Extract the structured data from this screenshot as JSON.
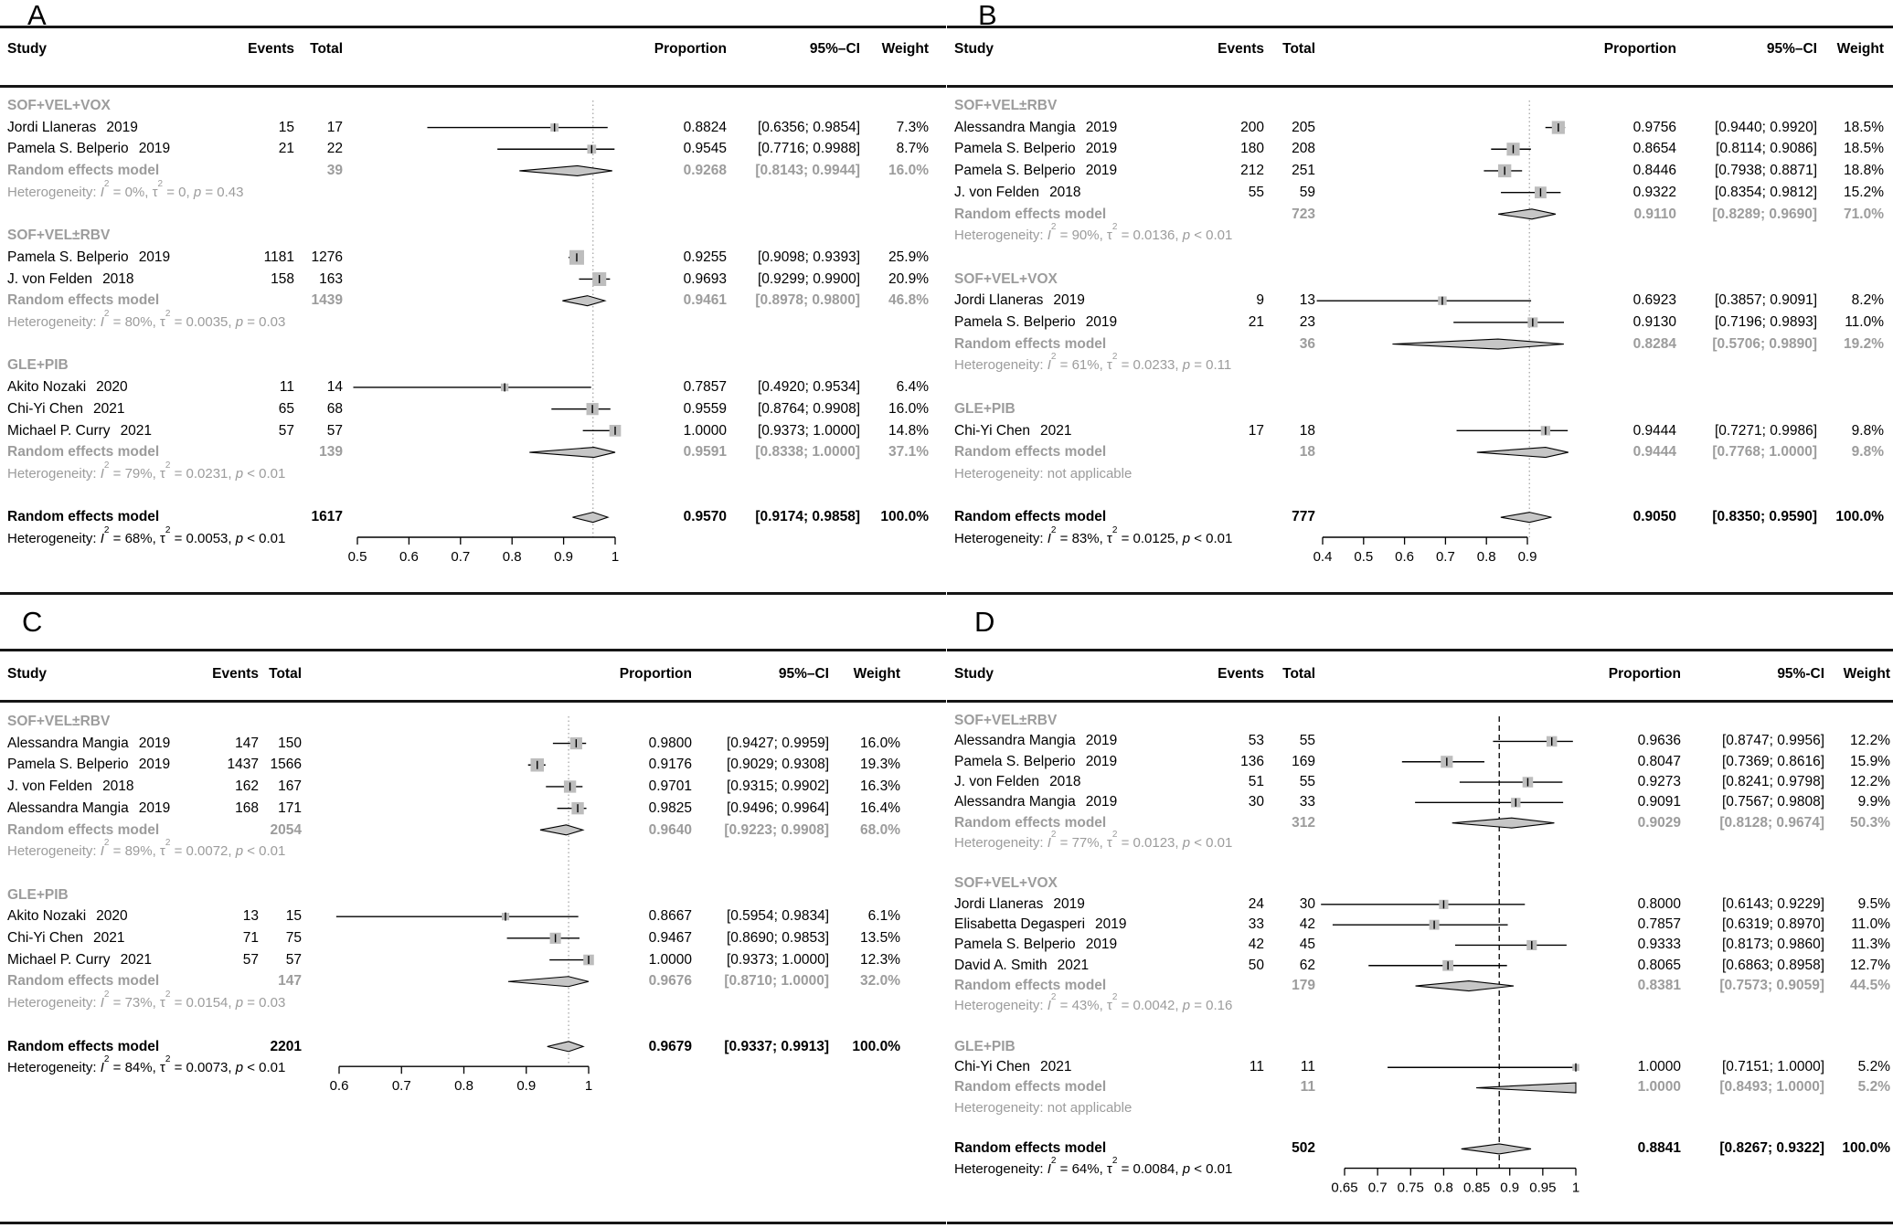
{
  "figure_colors": {
    "text": "#000000",
    "muted": "#9c9c9c",
    "square": "#bdbdbd",
    "diamond": "#c6c6c6",
    "ref_dotted": "#a8a8a8",
    "ref_dashed": "#000000",
    "rule": "#161616"
  },
  "chart_data": {
    "type": "forest",
    "panels": [
      {
        "label": "A",
        "columns": {
          "study": "Study",
          "events": "Events",
          "total": "Total",
          "proportion": "Proportion",
          "ci": "95%–CI",
          "weight": "Weight"
        },
        "axis": {
          "ticks": [
            {
              "v": 0.5,
              "label": "0.5"
            },
            {
              "v": 0.6,
              "label": "0.6"
            },
            {
              "v": 0.7,
              "label": "0.7"
            },
            {
              "v": 0.8,
              "label": "0.8"
            },
            {
              "v": 0.9,
              "label": "0.9"
            },
            {
              "v": 1.0,
              "label": "1"
            }
          ],
          "ref": 0.957,
          "ref_style": "dotted"
        },
        "rows": [
          {
            "type": "group",
            "label": "SOF+VEL+VOX"
          },
          {
            "type": "study",
            "study": "Jordi Llaneras",
            "year": "2019",
            "events": "15",
            "total": "17",
            "proportion": "0.8824",
            "ci": "[0.6356; 0.9854]",
            "weight": "7.3%"
          },
          {
            "type": "study",
            "study": "Pamela S. Belperio",
            "year": "2019",
            "events": "21",
            "total": "22",
            "proportion": "0.9545",
            "ci": "[0.7716; 0.9988]",
            "weight": "8.7%"
          },
          {
            "type": "pooled",
            "label": "Random effects model",
            "total": "39",
            "proportion": "0.9268",
            "ci": "[0.8143; 0.9944]",
            "weight": "16.0%"
          },
          {
            "type": "het",
            "i2": "0%",
            "tau2": "0",
            "p": "= 0.43"
          },
          {
            "type": "gap"
          },
          {
            "type": "group",
            "label": "SOF+VEL±RBV"
          },
          {
            "type": "study",
            "study": "Pamela S. Belperio",
            "year": "2019",
            "events": "1181",
            "total": "1276",
            "proportion": "0.9255",
            "ci": "[0.9098; 0.9393]",
            "weight": "25.9%"
          },
          {
            "type": "study",
            "study": "J. von Felden",
            "year": "2018",
            "events": "158",
            "total": "163",
            "proportion": "0.9693",
            "ci": "[0.9299; 0.9900]",
            "weight": "20.9%"
          },
          {
            "type": "pooled",
            "label": "Random effects model",
            "total": "1439",
            "proportion": "0.9461",
            "ci": "[0.8978; 0.9800]",
            "weight": "46.8%"
          },
          {
            "type": "het",
            "i2": "80%",
            "tau2": "0.0035",
            "p": "= 0.03"
          },
          {
            "type": "gap"
          },
          {
            "type": "group",
            "label": "GLE+PIB"
          },
          {
            "type": "study",
            "study": "Akito Nozaki",
            "year": "2020",
            "events": "11",
            "total": "14",
            "proportion": "0.7857",
            "ci": "[0.4920; 0.9534]",
            "weight": "6.4%"
          },
          {
            "type": "study",
            "study": "Chi-Yi Chen",
            "year": "2021",
            "events": "65",
            "total": "68",
            "proportion": "0.9559",
            "ci": "[0.8764; 0.9908]",
            "weight": "16.0%"
          },
          {
            "type": "study",
            "study": "Michael P. Curry",
            "year": "2021",
            "events": "57",
            "total": "57",
            "proportion": "1.0000",
            "ci": "[0.9373; 1.0000]",
            "weight": "14.8%"
          },
          {
            "type": "pooled",
            "label": "Random effects model",
            "total": "139",
            "proportion": "0.9591",
            "ci": "[0.8338; 1.0000]",
            "weight": "37.1%"
          },
          {
            "type": "het",
            "i2": "79%",
            "tau2": "0.0231",
            "p": "< 0.01"
          },
          {
            "type": "gap"
          },
          {
            "type": "overall",
            "label": "Random effects model",
            "total": "1617",
            "proportion": "0.9570",
            "ci": "[0.9174; 0.9858]",
            "weight": "100.0%"
          },
          {
            "type": "het_overall",
            "i2": "68%",
            "tau2": "0.0053",
            "p": "< 0.01"
          }
        ]
      },
      {
        "label": "B",
        "columns": {
          "study": "Study",
          "events": "Events",
          "total": "Total",
          "proportion": "Proportion",
          "ci": "95%–CI",
          "weight": "Weight"
        },
        "axis": {
          "ticks": [
            {
              "v": 0.4,
              "label": "0.4"
            },
            {
              "v": 0.5,
              "label": "0.5"
            },
            {
              "v": 0.6,
              "label": "0.6"
            },
            {
              "v": 0.7,
              "label": "0.7"
            },
            {
              "v": 0.8,
              "label": "0.8"
            },
            {
              "v": 0.9,
              "label": "0.9"
            }
          ],
          "ref": 0.905,
          "ref_style": "dotted"
        },
        "rows": [
          {
            "type": "group",
            "label": "SOF+VEL±RBV"
          },
          {
            "type": "study",
            "study": "Alessandra Mangia",
            "year": "2019",
            "events": "200",
            "total": "205",
            "proportion": "0.9756",
            "ci": "[0.9440; 0.9920]",
            "weight": "18.5%"
          },
          {
            "type": "study",
            "study": "Pamela S. Belperio",
            "year": "2019",
            "events": "180",
            "total": "208",
            "proportion": "0.8654",
            "ci": "[0.8114; 0.9086]",
            "weight": "18.5%"
          },
          {
            "type": "study",
            "study": "Pamela S. Belperio",
            "year": "2019",
            "events": "212",
            "total": "251",
            "proportion": "0.8446",
            "ci": "[0.7938; 0.8871]",
            "weight": "18.8%"
          },
          {
            "type": "study",
            "study": "J. von Felden",
            "year": "2018",
            "events": "55",
            "total": "59",
            "proportion": "0.9322",
            "ci": "[0.8354; 0.9812]",
            "weight": "15.2%"
          },
          {
            "type": "pooled",
            "label": "Random effects model",
            "total": "723",
            "proportion": "0.9110",
            "ci": "[0.8289; 0.9690]",
            "weight": "71.0%"
          },
          {
            "type": "het",
            "i2": "90%",
            "tau2": "0.0136",
            "p": "< 0.01"
          },
          {
            "type": "gap"
          },
          {
            "type": "group",
            "label": "SOF+VEL+VOX"
          },
          {
            "type": "study",
            "study": "Jordi Llaneras",
            "year": "2019",
            "events": "9",
            "total": "13",
            "proportion": "0.6923",
            "ci": "[0.3857; 0.9091]",
            "weight": "8.2%"
          },
          {
            "type": "study",
            "study": "Pamela S. Belperio",
            "year": "2019",
            "events": "21",
            "total": "23",
            "proportion": "0.9130",
            "ci": "[0.7196; 0.9893]",
            "weight": "11.0%"
          },
          {
            "type": "pooled",
            "label": "Random effects model",
            "total": "36",
            "proportion": "0.8284",
            "ci": "[0.5706; 0.9890]",
            "weight": "19.2%"
          },
          {
            "type": "het",
            "i2": "61%",
            "tau2": "0.0233",
            "p": "= 0.11"
          },
          {
            "type": "gap"
          },
          {
            "type": "group",
            "label": "GLE+PIB"
          },
          {
            "type": "study",
            "study": "Chi-Yi Chen",
            "year": "2021",
            "events": "17",
            "total": "18",
            "proportion": "0.9444",
            "ci": "[0.7271; 0.9986]",
            "weight": "9.8%"
          },
          {
            "type": "pooled",
            "label": "Random effects model",
            "total": "18",
            "proportion": "0.9444",
            "ci": "[0.7768; 1.0000]",
            "weight": "9.8%"
          },
          {
            "type": "het",
            "na": "not applicable"
          },
          {
            "type": "gap"
          },
          {
            "type": "overall",
            "label": "Random effects model",
            "total": "777",
            "proportion": "0.9050",
            "ci": "[0.8350; 0.9590]",
            "weight": "100.0%"
          },
          {
            "type": "het_overall",
            "i2": "83%",
            "tau2": "0.0125",
            "p": "< 0.01"
          }
        ]
      },
      {
        "label": "C",
        "columns": {
          "study": "Study",
          "events": "Events",
          "total": "Total",
          "proportion": "Proportion",
          "ci": "95%–CI",
          "weight": "Weight"
        },
        "axis": {
          "ticks": [
            {
              "v": 0.6,
              "label": "0.6"
            },
            {
              "v": 0.7,
              "label": "0.7"
            },
            {
              "v": 0.8,
              "label": "0.8"
            },
            {
              "v": 0.9,
              "label": "0.9"
            },
            {
              "v": 1.0,
              "label": "1"
            }
          ],
          "ref": 0.9679,
          "ref_style": "dotted"
        },
        "rows": [
          {
            "type": "group",
            "label": "SOF+VEL±RBV"
          },
          {
            "type": "study",
            "study": "Alessandra Mangia",
            "year": "2019",
            "events": "147",
            "total": "150",
            "proportion": "0.9800",
            "ci": "[0.9427; 0.9959]",
            "weight": "16.0%"
          },
          {
            "type": "study",
            "study": "Pamela S. Belperio",
            "year": "2019",
            "events": "1437",
            "total": "1566",
            "proportion": "0.9176",
            "ci": "[0.9029; 0.9308]",
            "weight": "19.3%"
          },
          {
            "type": "study",
            "study": "J. von Felden",
            "year": "2018",
            "events": "162",
            "total": "167",
            "proportion": "0.9701",
            "ci": "[0.9315; 0.9902]",
            "weight": "16.3%"
          },
          {
            "type": "study",
            "study": "Alessandra Mangia",
            "year": "2019",
            "events": "168",
            "total": "171",
            "proportion": "0.9825",
            "ci": "[0.9496; 0.9964]",
            "weight": "16.4%"
          },
          {
            "type": "pooled",
            "label": "Random effects model",
            "total": "2054",
            "proportion": "0.9640",
            "ci": "[0.9223; 0.9908]",
            "weight": "68.0%"
          },
          {
            "type": "het",
            "i2": "89%",
            "tau2": "0.0072",
            "p": "< 0.01"
          },
          {
            "type": "gap"
          },
          {
            "type": "group",
            "label": "GLE+PIB"
          },
          {
            "type": "study",
            "study": "Akito Nozaki",
            "year": "2020",
            "events": "13",
            "total": "15",
            "proportion": "0.8667",
            "ci": "[0.5954; 0.9834]",
            "weight": "6.1%"
          },
          {
            "type": "study",
            "study": "Chi-Yi Chen",
            "year": "2021",
            "events": "71",
            "total": "75",
            "proportion": "0.9467",
            "ci": "[0.8690; 0.9853]",
            "weight": "13.5%"
          },
          {
            "type": "study",
            "study": "Michael P. Curry",
            "year": "2021",
            "events": "57",
            "total": "57",
            "proportion": "1.0000",
            "ci": "[0.9373; 1.0000]",
            "weight": "12.3%"
          },
          {
            "type": "pooled",
            "label": "Random effects model",
            "total": "147",
            "proportion": "0.9676",
            "ci": "[0.8710; 1.0000]",
            "weight": "32.0%"
          },
          {
            "type": "het",
            "i2": "73%",
            "tau2": "0.0154",
            "p": "= 0.03"
          },
          {
            "type": "gap"
          },
          {
            "type": "overall",
            "label": "Random effects model",
            "total": "2201",
            "proportion": "0.9679",
            "ci": "[0.9337; 0.9913]",
            "weight": "100.0%"
          },
          {
            "type": "het_overall",
            "i2": "84%",
            "tau2": "0.0073",
            "p": "< 0.01"
          }
        ]
      },
      {
        "label": "D",
        "columns": {
          "study": "Study",
          "events": "Events",
          "total": "Total",
          "proportion": "Proportion",
          "ci": "95%-CI",
          "weight": "Weight"
        },
        "axis": {
          "ticks": [
            {
              "v": 0.65,
              "label": "0.65"
            },
            {
              "v": 0.7,
              "label": "0.7"
            },
            {
              "v": 0.75,
              "label": "0.75"
            },
            {
              "v": 0.8,
              "label": "0.8"
            },
            {
              "v": 0.85,
              "label": "0.85"
            },
            {
              "v": 0.9,
              "label": "0.9"
            },
            {
              "v": 0.95,
              "label": "0.95"
            },
            {
              "v": 1.0,
              "label": "1"
            }
          ],
          "ref": 0.8841,
          "ref_style": "dashed"
        },
        "rows": [
          {
            "type": "group",
            "label": "SOF+VEL±RBV"
          },
          {
            "type": "study",
            "study": "Alessandra Mangia",
            "year": "2019",
            "events": "53",
            "total": "55",
            "proportion": "0.9636",
            "ci": "[0.8747; 0.9956]",
            "weight": "12.2%"
          },
          {
            "type": "study",
            "study": "Pamela S. Belperio",
            "year": "2019",
            "events": "136",
            "total": "169",
            "proportion": "0.8047",
            "ci": "[0.7369; 0.8616]",
            "weight": "15.9%"
          },
          {
            "type": "study",
            "study": "J. von Felden",
            "year": "2018",
            "events": "51",
            "total": "55",
            "proportion": "0.9273",
            "ci": "[0.8241; 0.9798]",
            "weight": "12.2%"
          },
          {
            "type": "study",
            "study": "Alessandra Mangia",
            "year": "2019",
            "events": "30",
            "total": "33",
            "proportion": "0.9091",
            "ci": "[0.7567; 0.9808]",
            "weight": "9.9%"
          },
          {
            "type": "pooled",
            "label": "Random effects model",
            "total": "312",
            "proportion": "0.9029",
            "ci": "[0.8128; 0.9674]",
            "weight": "50.3%"
          },
          {
            "type": "het",
            "i2": "77%",
            "tau2": "0.0123",
            "p": "< 0.01"
          },
          {
            "type": "gap"
          },
          {
            "type": "group",
            "label": "SOF+VEL+VOX"
          },
          {
            "type": "study",
            "study": "Jordi Llaneras",
            "year": "2019",
            "events": "24",
            "total": "30",
            "proportion": "0.8000",
            "ci": "[0.6143; 0.9229]",
            "weight": "9.5%"
          },
          {
            "type": "study",
            "study": "Elisabetta Degasperi",
            "year": "2019",
            "events": "33",
            "total": "42",
            "proportion": "0.7857",
            "ci": "[0.6319; 0.8970]",
            "weight": "11.0%"
          },
          {
            "type": "study",
            "study": "Pamela S. Belperio",
            "year": "2019",
            "events": "42",
            "total": "45",
            "proportion": "0.9333",
            "ci": "[0.8173; 0.9860]",
            "weight": "11.3%"
          },
          {
            "type": "study",
            "study": "David A. Smith",
            "year": "2021",
            "events": "50",
            "total": "62",
            "proportion": "0.8065",
            "ci": "[0.6863; 0.8958]",
            "weight": "12.7%"
          },
          {
            "type": "pooled",
            "label": "Random effects model",
            "total": "179",
            "proportion": "0.8381",
            "ci": "[0.7573; 0.9059]",
            "weight": "44.5%"
          },
          {
            "type": "het",
            "i2": "43%",
            "tau2": "0.0042",
            "p": "= 0.16"
          },
          {
            "type": "gap"
          },
          {
            "type": "group",
            "label": "GLE+PIB"
          },
          {
            "type": "study",
            "study": "Chi-Yi Chen",
            "year": "2021",
            "events": "11",
            "total": "11",
            "proportion": "1.0000",
            "ci": "[0.7151; 1.0000]",
            "weight": "5.2%"
          },
          {
            "type": "pooled",
            "label": "Random effects model",
            "total": "11",
            "proportion": "1.0000",
            "ci": "[0.8493; 1.0000]",
            "weight": "5.2%"
          },
          {
            "type": "het",
            "na": "not applicable"
          },
          {
            "type": "gap"
          },
          {
            "type": "overall",
            "label": "Random effects model",
            "total": "502",
            "proportion": "0.8841",
            "ci": "[0.8267; 0.9322]",
            "weight": "100.0%"
          },
          {
            "type": "het_overall",
            "i2": "64%",
            "tau2": "0.0084",
            "p": "< 0.01"
          }
        ]
      }
    ]
  }
}
